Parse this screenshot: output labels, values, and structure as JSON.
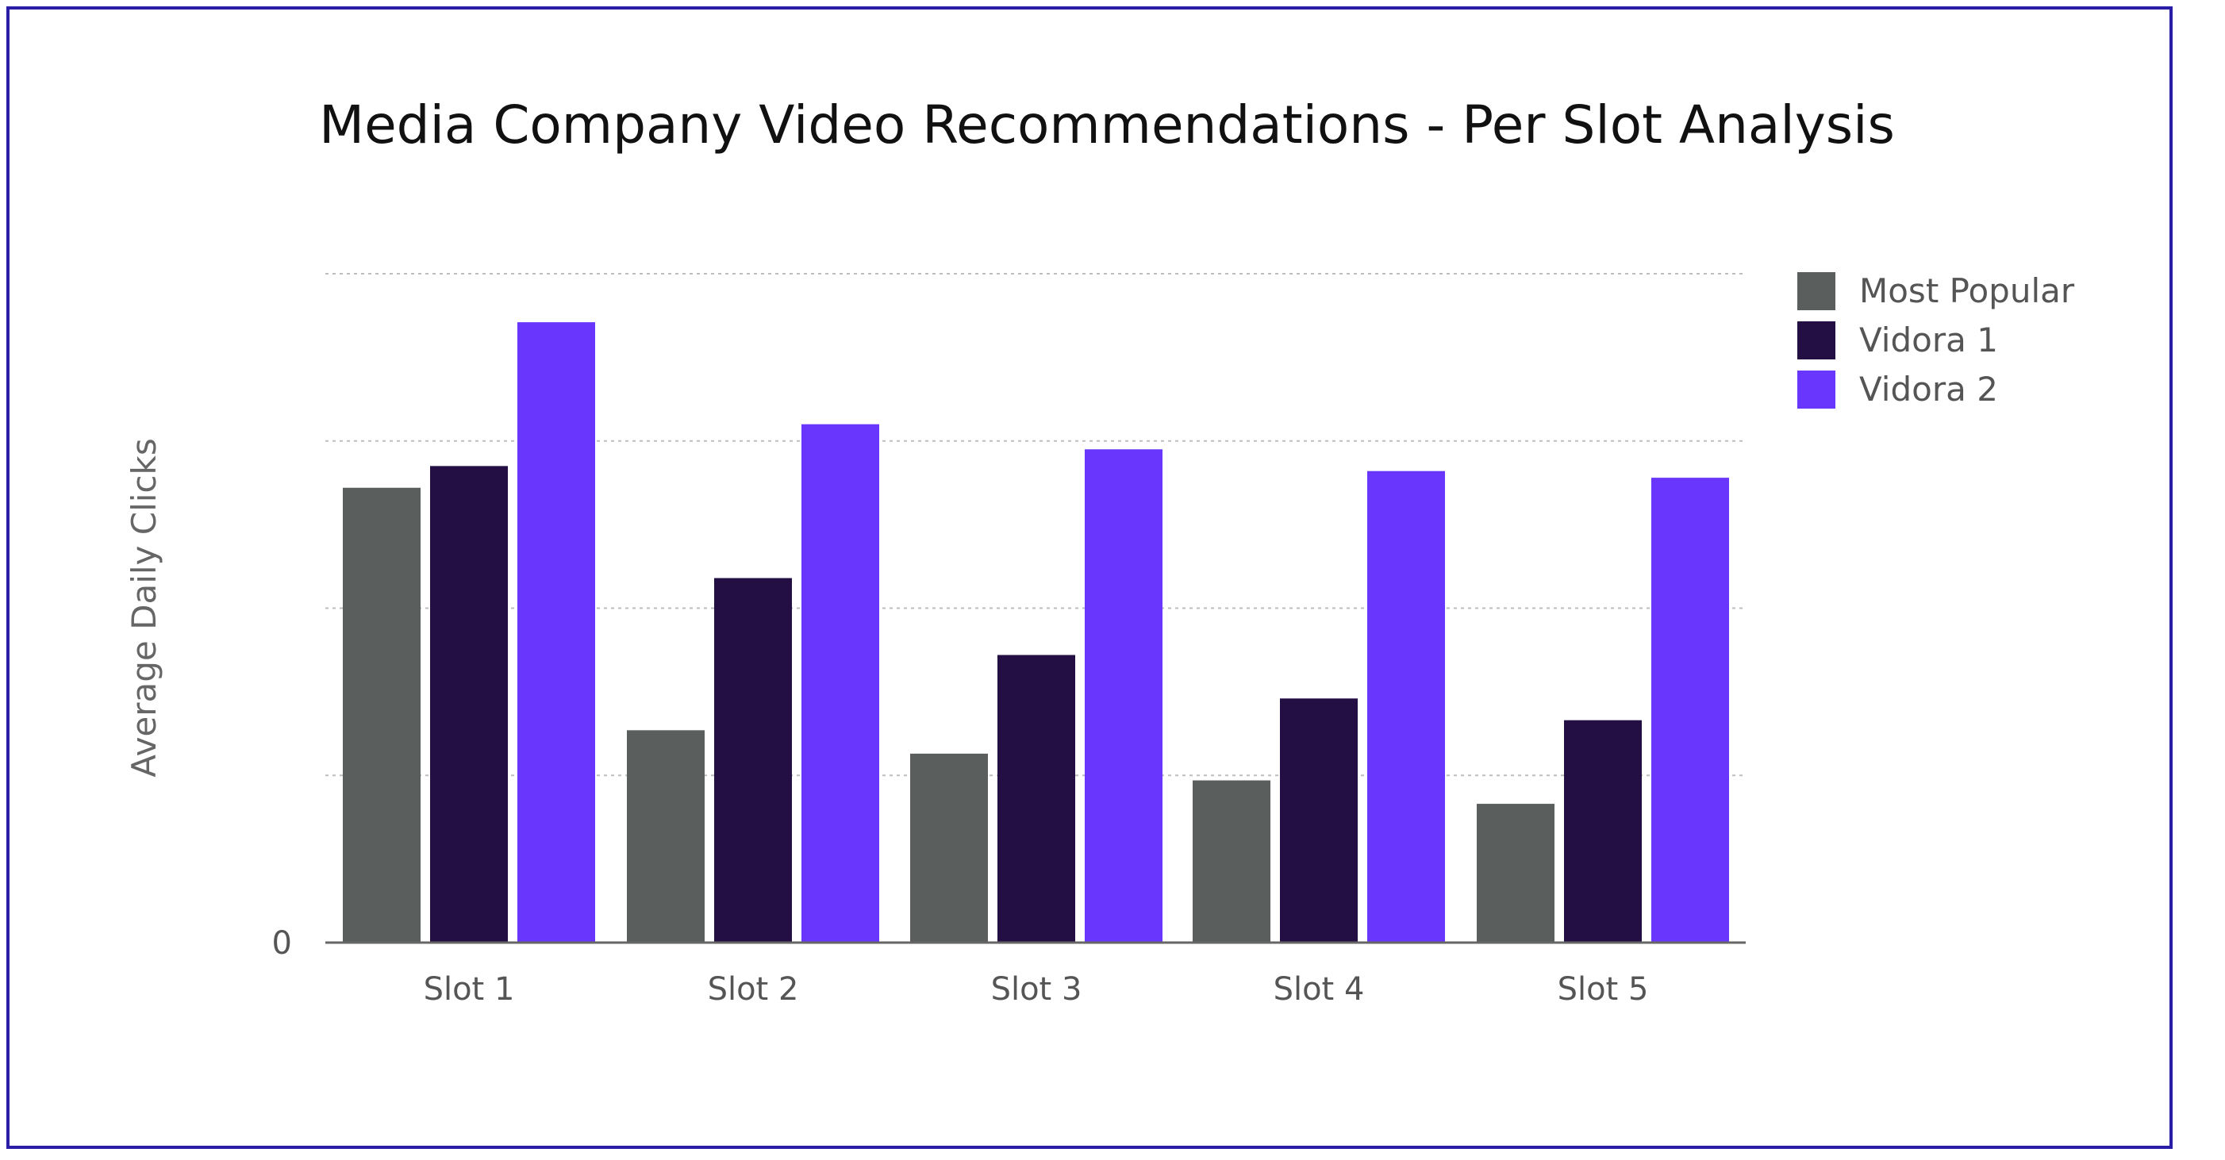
{
  "chart_data": {
    "type": "bar",
    "title": "Media Company Video Recommendations - Per Slot Analysis",
    "xlabel": "",
    "ylabel": "Average Daily Clicks",
    "categories": [
      "Slot 1",
      "Slot 2",
      "Slot 3",
      "Slot 4",
      "Slot 5"
    ],
    "series": [
      {
        "name": "Most Popular",
        "values": [
          2.72,
          1.27,
          1.13,
          0.97,
          0.83
        ]
      },
      {
        "name": "Vidora 1",
        "values": [
          2.85,
          2.18,
          1.72,
          1.46,
          1.33
        ]
      },
      {
        "name": "Vidora 2",
        "values": [
          3.71,
          3.1,
          2.95,
          2.82,
          2.78
        ]
      }
    ],
    "ylim": [
      0,
      4
    ],
    "yticks": [
      {
        "value": 0,
        "label": "0"
      },
      {
        "value": 1,
        "label": ""
      },
      {
        "value": 2,
        "label": ""
      },
      {
        "value": 3,
        "label": ""
      },
      {
        "value": 4,
        "label": ""
      }
    ],
    "grid": true,
    "legend_position": "top-right",
    "colors": [
      "#5a5e5c",
      "#230f43",
      "#6836fc"
    ]
  }
}
